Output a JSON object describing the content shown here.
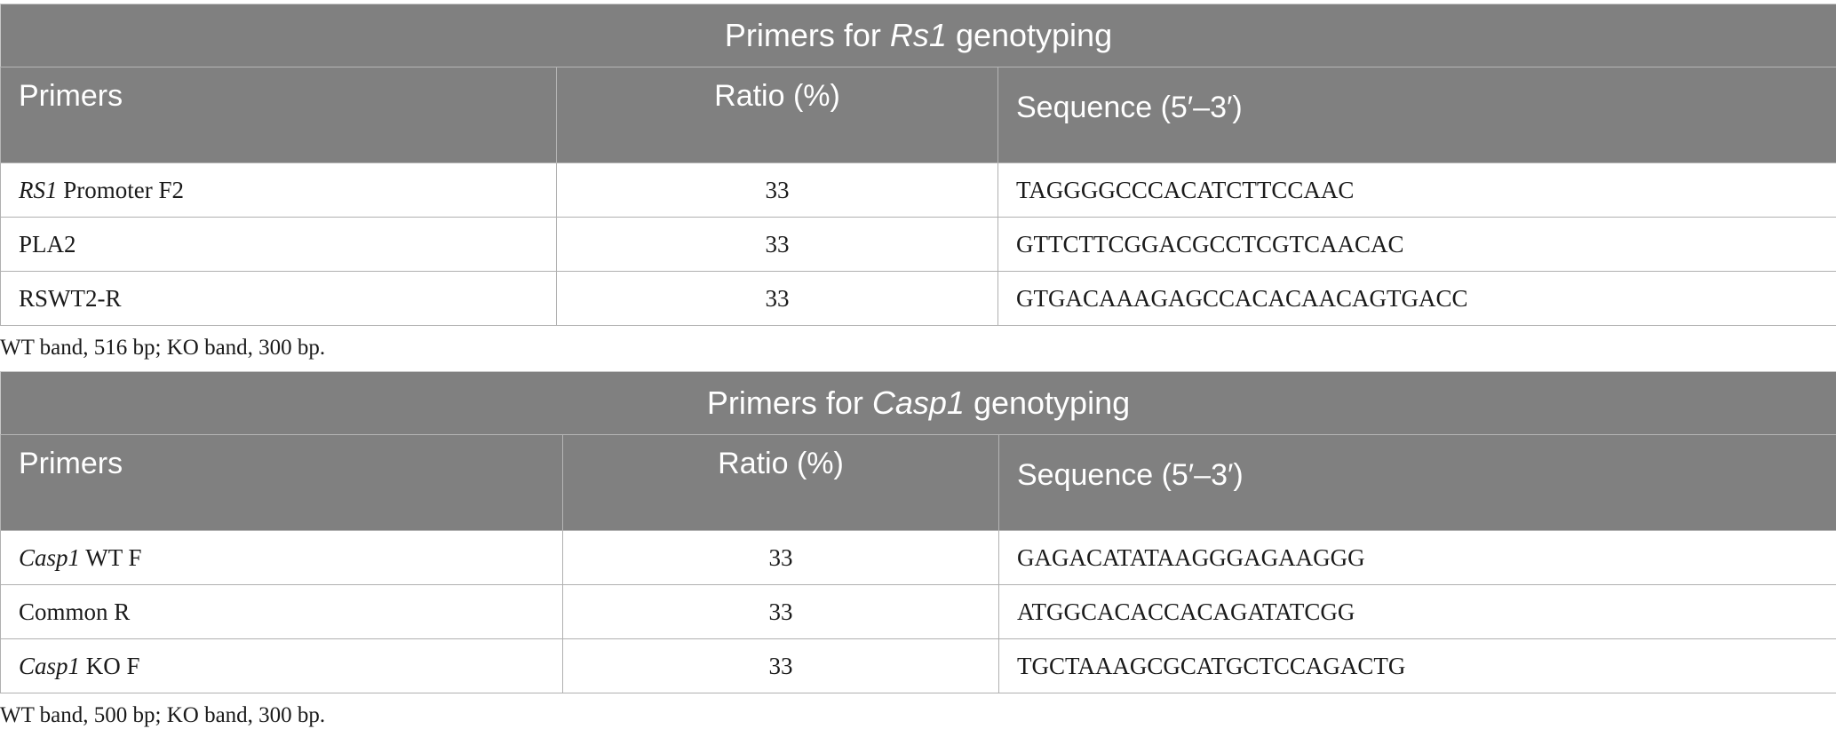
{
  "table1": {
    "title_prefix": "Primers for ",
    "title_italic": "Rs1",
    "title_suffix": " genotyping",
    "headers": {
      "primers": "Primers",
      "ratio": "Ratio (%)",
      "sequence": "Sequence (5′–3′)"
    },
    "rows": [
      {
        "primer_italic": "RS1",
        "primer_rest": " Promoter F2",
        "ratio": "33",
        "sequence": "TAGGGGCCCACATCTTCCAAC"
      },
      {
        "primer_italic": "",
        "primer_rest": "PLA2",
        "ratio": "33",
        "sequence": "GTTCTTCGGACGCCTCGTCAACAC"
      },
      {
        "primer_italic": "",
        "primer_rest": "RSWT2-R",
        "ratio": "33",
        "sequence": "GTGACAAAGAGCCACACAACAGTGACC"
      }
    ],
    "footnote": "WT band, 516 bp; KO band, 300 bp."
  },
  "table2": {
    "title_prefix": "Primers for ",
    "title_italic": "Casp1",
    "title_suffix": " genotyping",
    "headers": {
      "primers": "Primers",
      "ratio": "Ratio (%)",
      "sequence": "Sequence (5′–3′)"
    },
    "rows": [
      {
        "primer_italic": "Casp1",
        "primer_rest": " WT F",
        "ratio": "33",
        "sequence": "GAGACATATAAGGGAGAAGGG"
      },
      {
        "primer_italic": "",
        "primer_rest": "Common R",
        "ratio": "33",
        "sequence": "ATGGCACACCACAGATATCGG"
      },
      {
        "primer_italic": "Casp1",
        "primer_rest": " KO F",
        "ratio": "33",
        "sequence": "TGCTAAAGCGCATGCTCCAGACTG"
      }
    ],
    "footnote": "WT band, 500 bp; KO band, 300 bp."
  }
}
